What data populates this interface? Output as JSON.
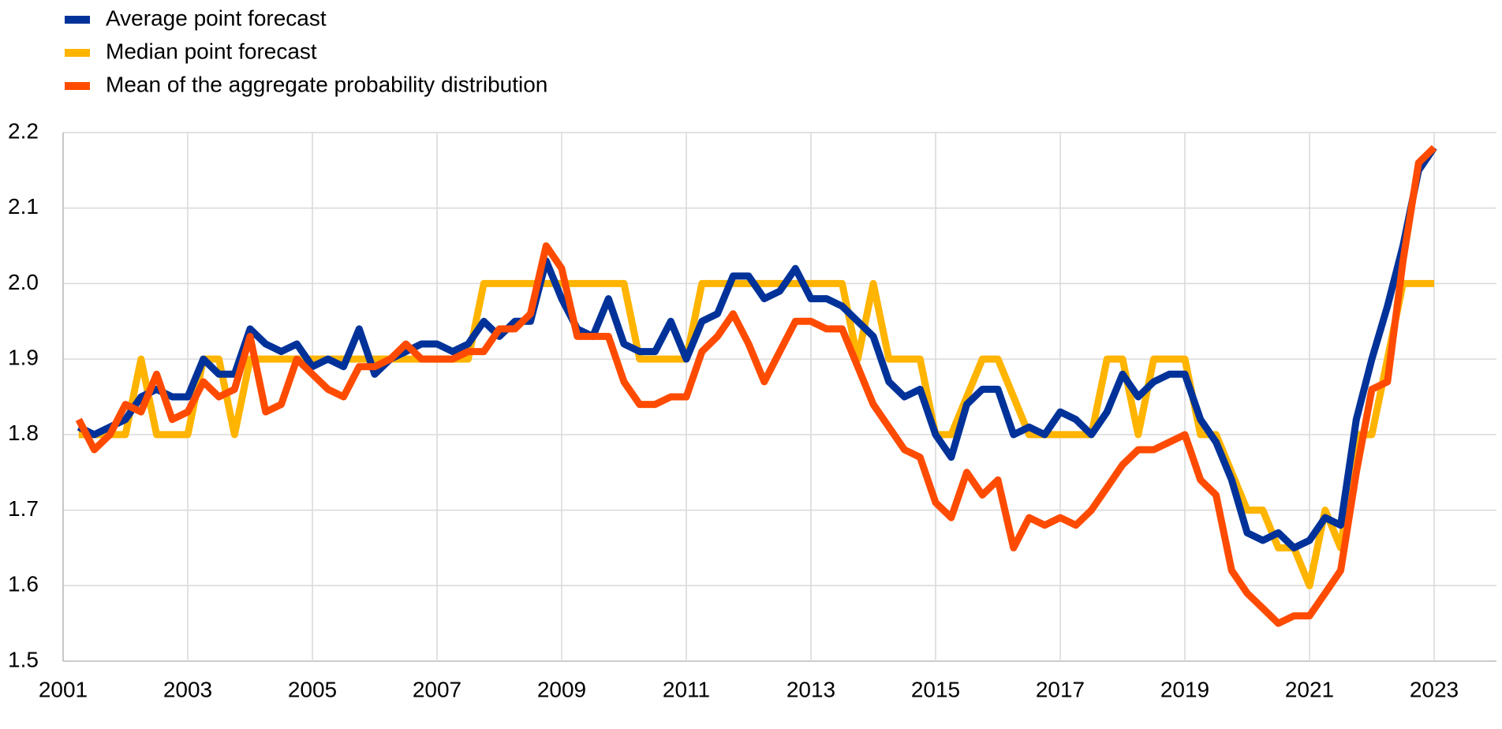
{
  "chart_data": {
    "type": "line",
    "x": [
      2001.25,
      2001.5,
      2001.75,
      2002,
      2002.25,
      2002.5,
      2002.75,
      2003,
      2003.25,
      2003.5,
      2003.75,
      2004,
      2004.25,
      2004.5,
      2004.75,
      2005,
      2005.25,
      2005.5,
      2005.75,
      2006,
      2006.25,
      2006.5,
      2006.75,
      2007,
      2007.25,
      2007.5,
      2007.75,
      2008,
      2008.25,
      2008.5,
      2008.75,
      2009,
      2009.25,
      2009.5,
      2009.75,
      2010,
      2010.25,
      2010.5,
      2010.75,
      2011,
      2011.25,
      2011.5,
      2011.75,
      2012,
      2012.25,
      2012.5,
      2012.75,
      2013,
      2013.25,
      2013.5,
      2013.75,
      2014,
      2014.25,
      2014.5,
      2014.75,
      2015,
      2015.25,
      2015.5,
      2015.75,
      2016,
      2016.25,
      2016.5,
      2016.75,
      2017,
      2017.25,
      2017.5,
      2017.75,
      2018,
      2018.25,
      2018.5,
      2018.75,
      2019,
      2019.25,
      2019.5,
      2019.75,
      2020,
      2020.25,
      2020.5,
      2020.75,
      2021,
      2021.25,
      2021.5,
      2021.75,
      2022,
      2022.25,
      2022.5,
      2022.75,
      2023
    ],
    "series": [
      {
        "name": "Average point forecast",
        "color": "#003299",
        "values": [
          1.81,
          1.8,
          1.81,
          1.82,
          1.85,
          1.86,
          1.85,
          1.85,
          1.9,
          1.88,
          1.88,
          1.94,
          1.92,
          1.91,
          1.92,
          1.89,
          1.9,
          1.89,
          1.94,
          1.88,
          1.9,
          1.91,
          1.92,
          1.92,
          1.91,
          1.92,
          1.95,
          1.93,
          1.95,
          1.95,
          2.03,
          1.98,
          1.94,
          1.93,
          1.98,
          1.92,
          1.91,
          1.91,
          1.95,
          1.9,
          1.95,
          1.96,
          2.01,
          2.01,
          1.98,
          1.99,
          2.02,
          1.98,
          1.98,
          1.97,
          1.95,
          1.93,
          1.87,
          1.85,
          1.86,
          1.8,
          1.77,
          1.84,
          1.86,
          1.86,
          1.8,
          1.81,
          1.8,
          1.83,
          1.82,
          1.8,
          1.83,
          1.88,
          1.85,
          1.87,
          1.88,
          1.88,
          1.82,
          1.79,
          1.74,
          1.67,
          1.66,
          1.67,
          1.65,
          1.66,
          1.69,
          1.68,
          1.82,
          1.9,
          1.97,
          2.05,
          2.15,
          2.18
        ]
      },
      {
        "name": "Median point forecast",
        "color": "#ffb400",
        "values": [
          1.8,
          1.8,
          1.8,
          1.8,
          1.9,
          1.8,
          1.8,
          1.8,
          1.9,
          1.9,
          1.8,
          1.9,
          1.9,
          1.9,
          1.9,
          1.9,
          1.9,
          1.9,
          1.9,
          1.9,
          1.9,
          1.9,
          1.9,
          1.9,
          1.9,
          1.9,
          2.0,
          2.0,
          2.0,
          2.0,
          2.0,
          2.0,
          2.0,
          2.0,
          2.0,
          2.0,
          1.9,
          1.9,
          1.9,
          1.9,
          2.0,
          2.0,
          2.0,
          2.0,
          2.0,
          2.0,
          2.0,
          2.0,
          2.0,
          2.0,
          1.9,
          2.0,
          1.9,
          1.9,
          1.9,
          1.8,
          1.8,
          1.85,
          1.9,
          1.9,
          1.85,
          1.8,
          1.8,
          1.8,
          1.8,
          1.8,
          1.9,
          1.9,
          1.8,
          1.9,
          1.9,
          1.9,
          1.8,
          1.8,
          1.75,
          1.7,
          1.7,
          1.65,
          1.65,
          1.6,
          1.7,
          1.65,
          1.8,
          1.8,
          1.9,
          2.0,
          2.0,
          2.0
        ]
      },
      {
        "name": "Mean of the aggregate probability distribution",
        "color": "#ff4b00",
        "values": [
          1.82,
          1.78,
          1.8,
          1.84,
          1.83,
          1.88,
          1.82,
          1.83,
          1.87,
          1.85,
          1.86,
          1.93,
          1.83,
          1.84,
          1.9,
          1.88,
          1.86,
          1.85,
          1.89,
          1.89,
          1.9,
          1.92,
          1.9,
          1.9,
          1.9,
          1.91,
          1.91,
          1.94,
          1.94,
          1.96,
          2.05,
          2.02,
          1.93,
          1.93,
          1.93,
          1.87,
          1.84,
          1.84,
          1.85,
          1.85,
          1.91,
          1.93,
          1.96,
          1.92,
          1.87,
          1.91,
          1.95,
          1.95,
          1.94,
          1.94,
          1.89,
          1.84,
          1.81,
          1.78,
          1.77,
          1.71,
          1.69,
          1.75,
          1.72,
          1.74,
          1.65,
          1.69,
          1.68,
          1.69,
          1.68,
          1.7,
          1.73,
          1.76,
          1.78,
          1.78,
          1.79,
          1.8,
          1.74,
          1.72,
          1.62,
          1.59,
          1.57,
          1.55,
          1.56,
          1.56,
          1.59,
          1.62,
          1.75,
          1.86,
          1.87,
          2.03,
          2.16,
          2.18
        ]
      }
    ],
    "xlim": [
      2001,
      2024
    ],
    "xticks": [
      2001,
      2003,
      2005,
      2007,
      2009,
      2011,
      2013,
      2015,
      2017,
      2019,
      2021,
      2023
    ],
    "ylim": [
      1.5,
      2.2
    ],
    "yticks": [
      1.5,
      {
        "value": 1.6,
        "label": "1.6"
      },
      {
        "value": 1.7,
        "label": "1.7"
      },
      {
        "value": 1.8,
        "label": "1.8"
      },
      {
        "value": 1.9,
        "label": "1.9"
      },
      {
        "value": 2.0,
        "label": "2.0"
      },
      {
        "value": 2.1,
        "label": "2.1"
      },
      2.2
    ],
    "grid": true,
    "legend": "top-left"
  }
}
